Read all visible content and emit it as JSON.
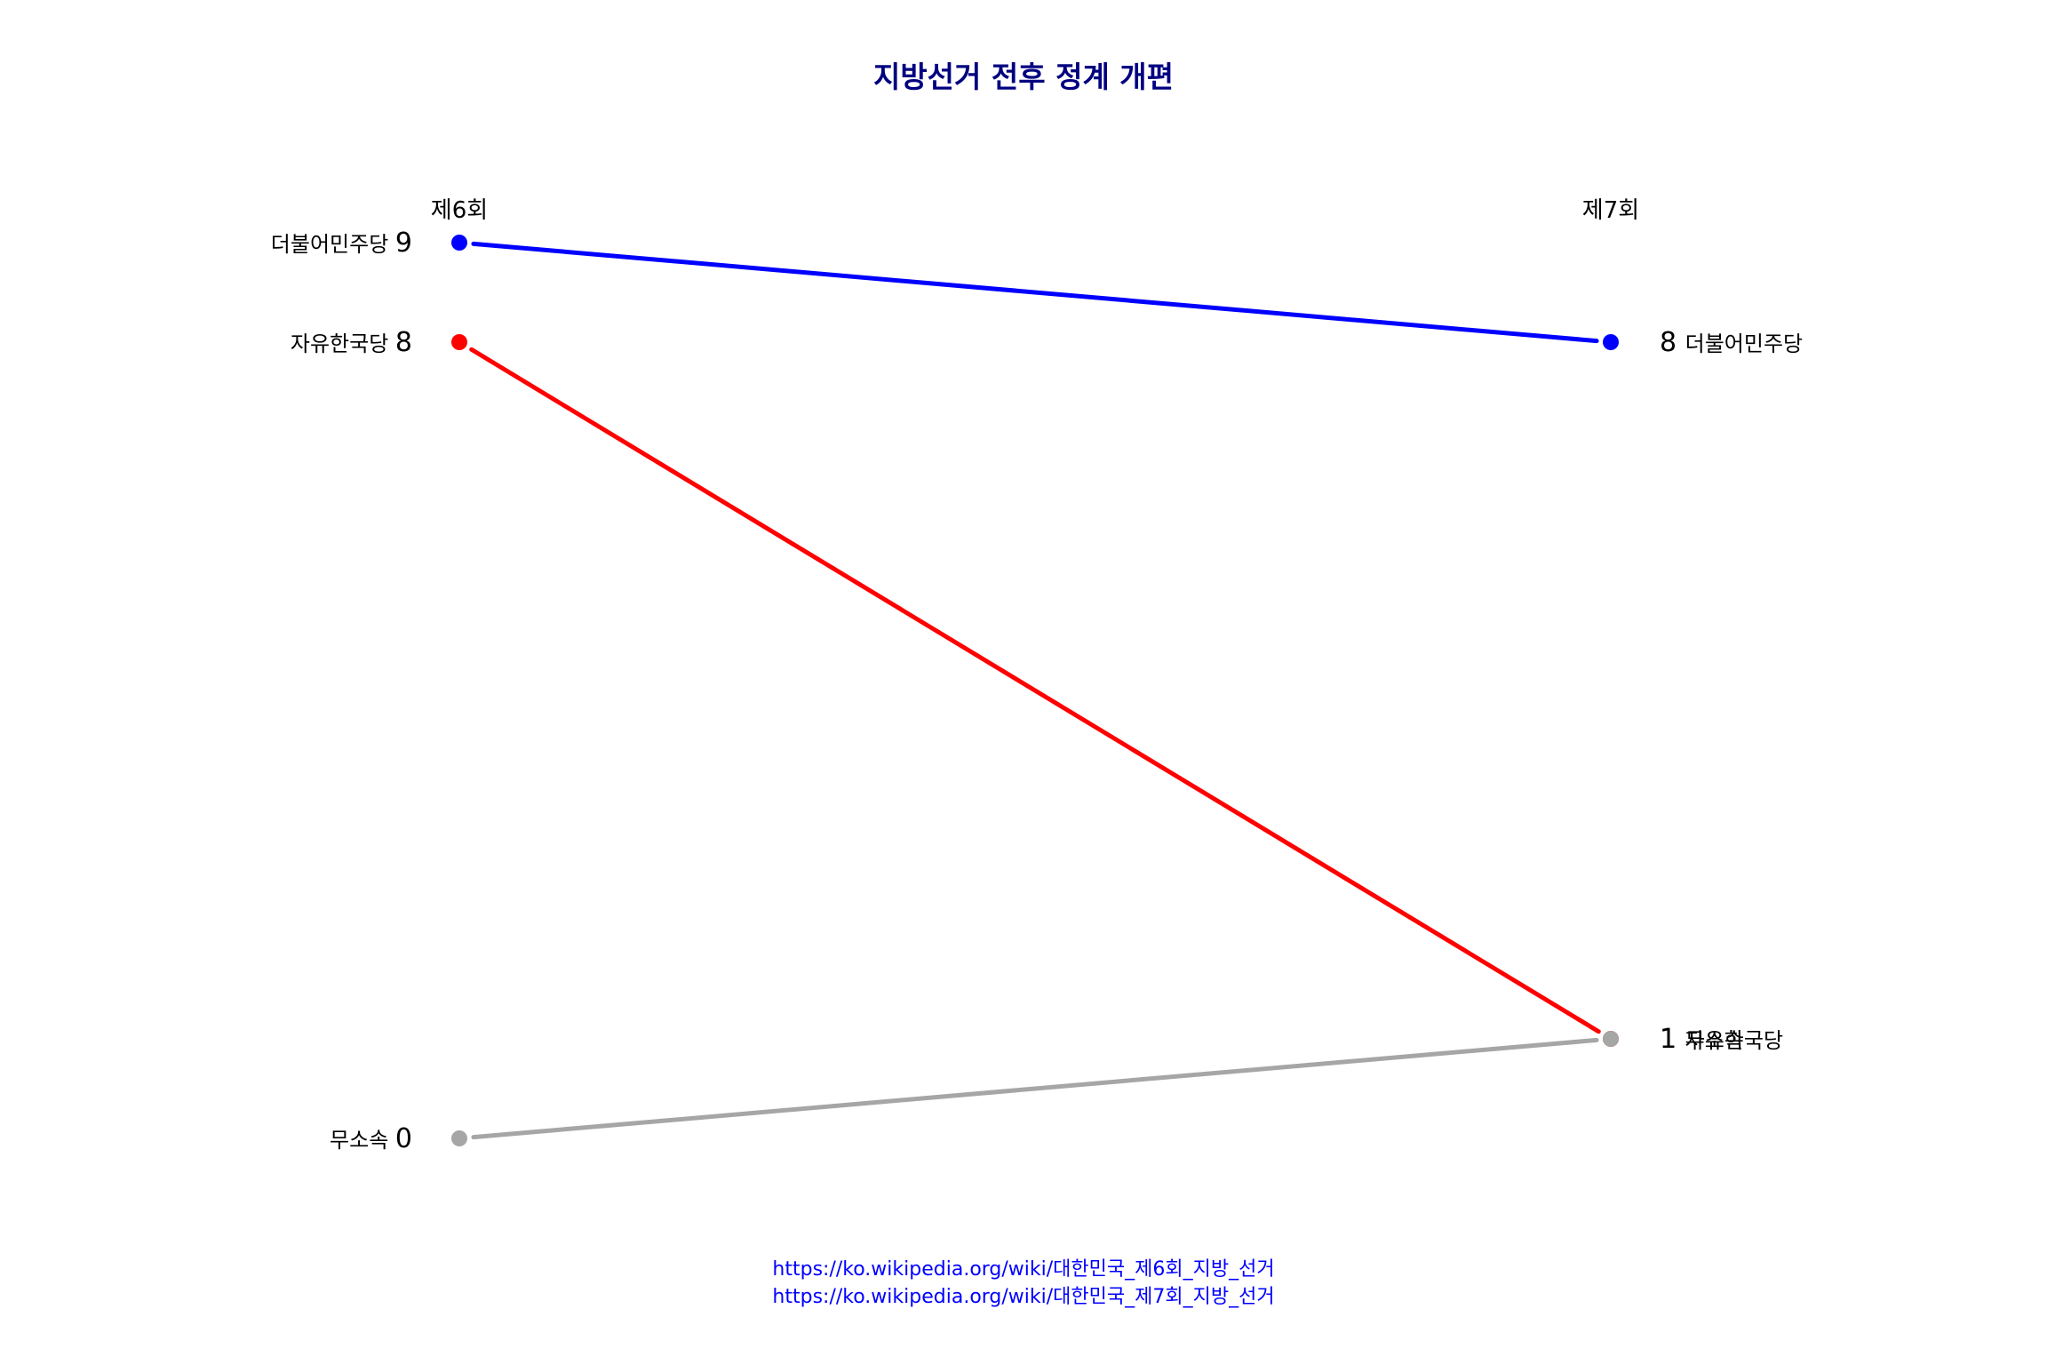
{
  "chart_data": {
    "type": "line",
    "chart_kind": "slopegraph",
    "title": "지방선거 전후 정계 개편",
    "x": [
      "제6회",
      "제7회"
    ],
    "ylim": [
      0,
      9
    ],
    "grid": false,
    "legend": "none",
    "series": [
      {
        "name": "더불어민주당",
        "values": [
          9,
          8
        ],
        "color": "#0000ff"
      },
      {
        "name": "자유한국당",
        "values": [
          8,
          1
        ],
        "color": "#ff0000"
      },
      {
        "name": "무소속",
        "values": [
          0,
          1
        ],
        "color": "#a6a6a6"
      }
    ],
    "sources": [
      "https://ko.wikipedia.org/wiki/대한민국_제6회_지방_선거",
      "https://ko.wikipedia.org/wiki/대한민국_제7회_지방_선거"
    ]
  },
  "colors": {
    "title": "#000080",
    "source": "#0000ff"
  }
}
